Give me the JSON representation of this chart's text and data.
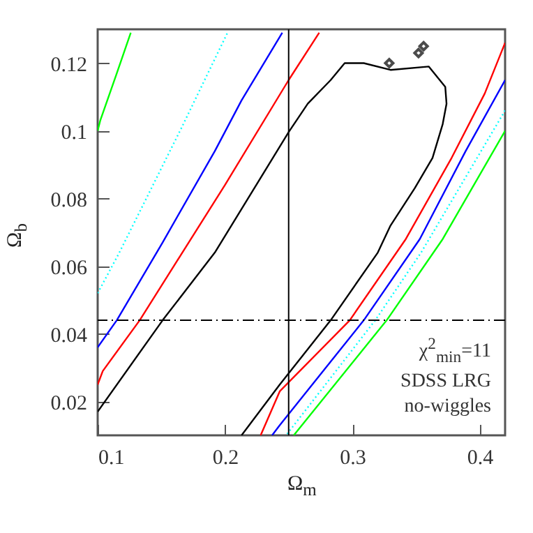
{
  "chart_data": {
    "type": "line",
    "xlabel": "Ω$_{m}$",
    "ylabel": "Ω$_{b}$",
    "xlim": [
      0.1,
      0.42
    ],
    "ylim": [
      0.01,
      0.13
    ],
    "xticks": [
      0.1,
      0.2,
      0.3,
      0.4
    ],
    "yticks": [
      0.02,
      0.04,
      0.06,
      0.08,
      0.1,
      0.12
    ],
    "grid": false,
    "series": [
      {
        "color": "#000000",
        "x": [
          0.1,
          0.151,
          0.192,
          0.25,
          0.265,
          0.283,
          0.294,
          0.309,
          0.33,
          0.36,
          0.373,
          0.374,
          0.371,
          0.363,
          0.349,
          0.33,
          0.32,
          0.283,
          0.243,
          0.213
        ],
        "values": [
          0.017,
          0.044,
          0.064,
          0.0996,
          0.108,
          0.115,
          0.12,
          0.12,
          0.118,
          0.119,
          0.113,
          0.108,
          0.102,
          0.092,
          0.083,
          0.072,
          0.064,
          0.044,
          0.025,
          0.01
        ]
      },
      {
        "color": "#ff0000",
        "x": [
          0.1,
          0.104,
          0.133,
          0.2,
          0.25,
          0.274
        ],
        "values": [
          0.025,
          0.029,
          0.044,
          0.084,
          0.115,
          0.129
        ]
      },
      {
        "color": "#ff0000",
        "x": [
          0.42,
          0.404,
          0.378,
          0.342,
          0.298,
          0.243,
          0.228
        ],
        "values": [
          0.126,
          0.111,
          0.092,
          0.068,
          0.044,
          0.023,
          0.01
        ]
      },
      {
        "color": "#0000ff",
        "x": [
          0.1,
          0.115,
          0.151,
          0.192,
          0.213,
          0.245
        ],
        "values": [
          0.036,
          0.044,
          0.067,
          0.094,
          0.109,
          0.129
        ]
      },
      {
        "color": "#0000ff",
        "x": [
          0.42,
          0.389,
          0.353,
          0.309,
          0.243,
          0.237
        ],
        "values": [
          0.115,
          0.094,
          0.068,
          0.044,
          0.013,
          0.01
        ]
      },
      {
        "color": "#00ffff",
        "line_style": "dotted",
        "x": [
          0.1,
          0.117,
          0.166,
          0.202
        ],
        "values": [
          0.052,
          0.064,
          0.101,
          0.129
        ]
      },
      {
        "color": "#00ffff",
        "line_style": "dotted",
        "x": [
          0.42,
          0.354,
          0.318,
          0.248
        ],
        "values": [
          0.106,
          0.064,
          0.044,
          0.01
        ]
      },
      {
        "color": "#00ff00",
        "x": [
          0.1,
          0.102,
          0.115,
          0.126
        ],
        "values": [
          0.1,
          0.103,
          0.117,
          0.129
        ]
      },
      {
        "color": "#00ff00",
        "x": [
          0.42,
          0.371,
          0.327,
          0.254
        ],
        "values": [
          0.1,
          0.068,
          0.044,
          0.01
        ]
      },
      {
        "type": "scatter",
        "marker": "diamond",
        "color": "#000000",
        "x": [
          0.329,
          0.352,
          0.356
        ],
        "values": [
          0.12,
          0.123,
          0.125
        ]
      }
    ],
    "ref_lines": [
      {
        "axis": "x",
        "value": 0.25,
        "color": "#000000",
        "line_style": "solid"
      },
      {
        "axis": "y",
        "value": 0.044,
        "color": "#000000",
        "line_style": "dashed"
      }
    ],
    "annotations": [
      "χ$^{2}$$_{min}$=11",
      "SDSS LRG",
      "no-wiggles"
    ]
  }
}
